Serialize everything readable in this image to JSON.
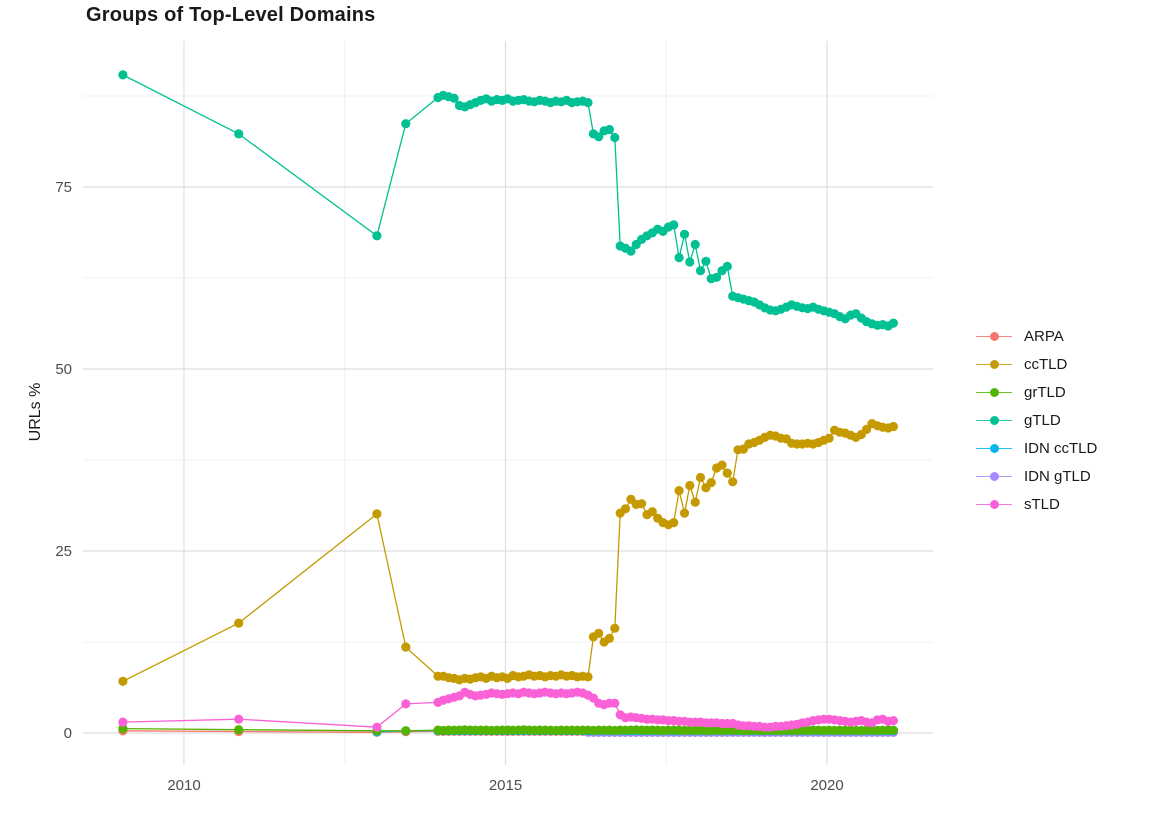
{
  "chart_data": {
    "type": "line",
    "title": "Groups of Top-Level Domains",
    "xlabel": "",
    "ylabel": "URLs %",
    "grid": true,
    "legend_position": "right",
    "x_ticks": [
      2010,
      2015,
      2020
    ],
    "x_minor_gridlines": [
      2012.5,
      2017.5
    ],
    "y_ticks": [
      0,
      25,
      50,
      75
    ],
    "y_minor_gridlines": [
      12.5,
      37.5,
      62.5,
      87.5
    ],
    "x_range": [
      2008.45,
      2021.9
    ],
    "y_range": [
      -4.5,
      95
    ],
    "sample_dates_early": [
      2009.05,
      2010.85,
      2013.0,
      2013.45
    ],
    "dense_start": 2013.95,
    "dense_step_years": 0.08333,
    "draw_order": [
      0,
      5,
      4,
      2,
      3,
      1,
      6
    ],
    "series": [
      {
        "name": "ARPA",
        "color": "#F8766D",
        "early": [
          0.3,
          0.2,
          0.1,
          0.18
        ],
        "dense": [
          0.22,
          0.22,
          0.22,
          0.22,
          0.22,
          0.22,
          0.22,
          0.22,
          0.22,
          0.22,
          0.22,
          0.22,
          0.22,
          0.22,
          0.22,
          0.22,
          0.22,
          0.22,
          0.22,
          0.22,
          0.22,
          0.22,
          0.22,
          0.22,
          0.22,
          0.22,
          0.22,
          0.22,
          0.22,
          0.1,
          0.1,
          0.1,
          0.1,
          0.1,
          0.1,
          0.1,
          0.1,
          0.1,
          0.1,
          0.1,
          0.1,
          0.1,
          0.1,
          0.1,
          0.1,
          0.1,
          0.1,
          0.1,
          0.1,
          0.1,
          0.1,
          0.1,
          0.1,
          0.1,
          0.1,
          0.1,
          0.1,
          0.1,
          0.1,
          0.1,
          0.1,
          0.1,
          0.1,
          0.1,
          0.1,
          0.1,
          0.1,
          0.1,
          0.1,
          0.1,
          0.1,
          0.1,
          0.1,
          0.1,
          0.1,
          0.1,
          0.1,
          0.1,
          0.1,
          0.1,
          0.1,
          0.1,
          0.1,
          0.1,
          0.1,
          0.1
        ]
      },
      {
        "name": "ccTLD",
        "color": "#C49A00",
        "early": [
          7.1,
          15.1,
          30.1,
          11.8
        ],
        "dense": [
          7.8,
          7.8,
          7.6,
          7.5,
          7.3,
          7.5,
          7.4,
          7.6,
          7.7,
          7.5,
          7.8,
          7.6,
          7.7,
          7.5,
          7.9,
          7.7,
          7.8,
          8.0,
          7.8,
          7.9,
          7.7,
          7.9,
          7.8,
          8.0,
          7.8,
          7.9,
          7.7,
          7.8,
          7.7,
          13.2,
          13.7,
          12.5,
          13.0,
          14.4,
          30.2,
          30.8,
          32.1,
          31.4,
          31.5,
          30.0,
          30.4,
          29.5,
          28.9,
          28.6,
          28.9,
          33.3,
          30.2,
          34.0,
          31.7,
          35.1,
          33.7,
          34.4,
          36.4,
          36.8,
          35.7,
          34.5,
          38.9,
          39.0,
          39.7,
          39.9,
          40.2,
          40.6,
          40.9,
          40.8,
          40.5,
          40.4,
          39.8,
          39.7,
          39.7,
          39.8,
          39.7,
          39.9,
          40.2,
          40.5,
          41.6,
          41.3,
          41.2,
          40.9,
          40.6,
          41.0,
          41.7,
          42.5,
          42.2,
          42.0,
          41.9,
          42.1
        ]
      },
      {
        "name": "grTLD",
        "color": "#53B400",
        "early": [
          0.6,
          0.45,
          0.3,
          0.3
        ],
        "dense": [
          0.4,
          0.35,
          0.4,
          0.38,
          0.4,
          0.42,
          0.4,
          0.38,
          0.4,
          0.4,
          0.35,
          0.38,
          0.4,
          0.4,
          0.38,
          0.4,
          0.42,
          0.4,
          0.38,
          0.4,
          0.4,
          0.38,
          0.35,
          0.4,
          0.38,
          0.4,
          0.38,
          0.4,
          0.38,
          0.35,
          0.4,
          0.38,
          0.4,
          0.35,
          0.4,
          0.38,
          0.4,
          0.42,
          0.4,
          0.38,
          0.4,
          0.38,
          0.35,
          0.38,
          0.4,
          0.38,
          0.35,
          0.38,
          0.35,
          0.38,
          0.35,
          0.35,
          0.38,
          0.35,
          0.38,
          0.35,
          0.38,
          0.35,
          0.35,
          0.38,
          0.35,
          0.35,
          0.38,
          0.35,
          0.35,
          0.38,
          0.35,
          0.35,
          0.38,
          0.35,
          0.4,
          0.38,
          0.35,
          0.38,
          0.35,
          0.38,
          0.35,
          0.38,
          0.35,
          0.35,
          0.4,
          0.38,
          0.35,
          0.38,
          0.4,
          0.38
        ]
      },
      {
        "name": "gTLD",
        "color": "#00C094",
        "early": [
          90.4,
          82.3,
          68.3,
          83.7
        ],
        "dense": [
          87.3,
          87.6,
          87.4,
          87.2,
          86.2,
          86.0,
          86.3,
          86.6,
          86.9,
          87.1,
          86.8,
          87.0,
          86.9,
          87.1,
          86.8,
          86.9,
          87.0,
          86.8,
          86.7,
          86.9,
          86.8,
          86.6,
          86.8,
          86.7,
          86.9,
          86.6,
          86.7,
          86.8,
          86.6,
          82.3,
          81.9,
          82.7,
          82.9,
          81.8,
          66.9,
          66.6,
          66.2,
          67.1,
          67.8,
          68.3,
          68.7,
          69.2,
          68.9,
          69.5,
          69.8,
          65.3,
          68.5,
          64.7,
          67.1,
          63.5,
          64.8,
          62.4,
          62.6,
          63.5,
          64.1,
          60.0,
          59.8,
          59.6,
          59.4,
          59.2,
          58.8,
          58.4,
          58.1,
          58.0,
          58.2,
          58.5,
          58.8,
          58.6,
          58.4,
          58.3,
          58.5,
          58.2,
          58.0,
          57.8,
          57.6,
          57.2,
          56.9,
          57.4,
          57.6,
          57.0,
          56.5,
          56.2,
          56.0,
          56.1,
          55.9,
          56.3
        ]
      },
      {
        "name": "IDN ccTLD",
        "color": "#00B6EB",
        "early": [
          null,
          null,
          0.15,
          0.3
        ],
        "dense": [
          0.32,
          0.32,
          0.32,
          0.32,
          0.32,
          0.32,
          0.32,
          0.32,
          0.32,
          0.32,
          0.32,
          0.32,
          0.32,
          0.32,
          0.32,
          0.32,
          0.32,
          0.32,
          0.32,
          0.32,
          0.32,
          0.32,
          0.32,
          0.32,
          0.32,
          0.32,
          0.32,
          0.32,
          0.32,
          0.32,
          0.32,
          0.32,
          0.32,
          0.32,
          0.32,
          0.32,
          0.32,
          0.32,
          0.32,
          0.32,
          0.32,
          0.32,
          0.32,
          0.32,
          0.32,
          0.32,
          0.32,
          0.32,
          0.32,
          0.32,
          0.32,
          0.32,
          0.32,
          0.32,
          0.32,
          0.32,
          0.32,
          0.32,
          0.32,
          0.32,
          0.32,
          0.32,
          0.32,
          0.32,
          0.32,
          0.32,
          0.32,
          0.32,
          0.32,
          0.32,
          0.32,
          0.32,
          0.32,
          0.32,
          0.32,
          0.32,
          0.32,
          0.32,
          0.32,
          0.32,
          0.32,
          0.32,
          0.32,
          0.32,
          0.32,
          0.32
        ]
      },
      {
        "name": "IDN gTLD",
        "color": "#A58AFF",
        "early": [
          null,
          null,
          null,
          null
        ],
        "dense": [
          null,
          null,
          null,
          null,
          null,
          null,
          null,
          null,
          null,
          null,
          null,
          null,
          null,
          null,
          null,
          null,
          null,
          null,
          null,
          null,
          null,
          null,
          null,
          null,
          null,
          null,
          null,
          null,
          0.1,
          0.1,
          0.1,
          0.1,
          0.1,
          0.1,
          0.1,
          0.1,
          0.1,
          0.1,
          0.1,
          0.1,
          0.1,
          0.1,
          0.1,
          0.1,
          0.1,
          0.1,
          0.1,
          0.1,
          0.1,
          0.1,
          0.1,
          0.1,
          0.1,
          0.1,
          0.1,
          0.1,
          0.1,
          0.1,
          0.1,
          0.1,
          0.1,
          0.1,
          0.1,
          0.1,
          0.1,
          0.1,
          0.1,
          0.1,
          0.1,
          0.1,
          0.1,
          0.1,
          0.1,
          0.1,
          0.1,
          0.1,
          0.1,
          0.1,
          0.1,
          0.1,
          0.1,
          0.1,
          0.1,
          0.1,
          0.1,
          0.1
        ]
      },
      {
        "name": "sTLD",
        "color": "#FB61D7",
        "early": [
          1.5,
          1.9,
          0.8,
          4.0
        ],
        "dense": [
          4.2,
          4.5,
          4.7,
          4.9,
          5.1,
          5.6,
          5.3,
          5.1,
          5.2,
          5.3,
          5.5,
          5.4,
          5.3,
          5.4,
          5.5,
          5.4,
          5.6,
          5.5,
          5.4,
          5.5,
          5.6,
          5.5,
          5.4,
          5.5,
          5.4,
          5.5,
          5.6,
          5.5,
          5.2,
          4.8,
          4.1,
          3.9,
          4.1,
          4.1,
          2.5,
          2.1,
          2.2,
          2.1,
          2.0,
          1.9,
          1.9,
          1.8,
          1.8,
          1.7,
          1.7,
          1.6,
          1.6,
          1.5,
          1.5,
          1.5,
          1.4,
          1.4,
          1.4,
          1.3,
          1.3,
          1.3,
          1.1,
          1.0,
          1.0,
          0.9,
          0.9,
          0.8,
          0.8,
          0.9,
          0.9,
          1.0,
          1.1,
          1.2,
          1.4,
          1.5,
          1.7,
          1.8,
          1.9,
          1.9,
          1.8,
          1.7,
          1.6,
          1.5,
          1.6,
          1.7,
          1.5,
          1.4,
          1.8,
          1.9,
          1.6,
          1.7
        ]
      }
    ]
  },
  "style_colors": {
    "grid_major": "#DEDEDE",
    "grid_minor": "#F0F0F0",
    "tick_label": "#4D4D4D",
    "title_color": "#1A1A1A",
    "background": "#FFFFFF"
  }
}
